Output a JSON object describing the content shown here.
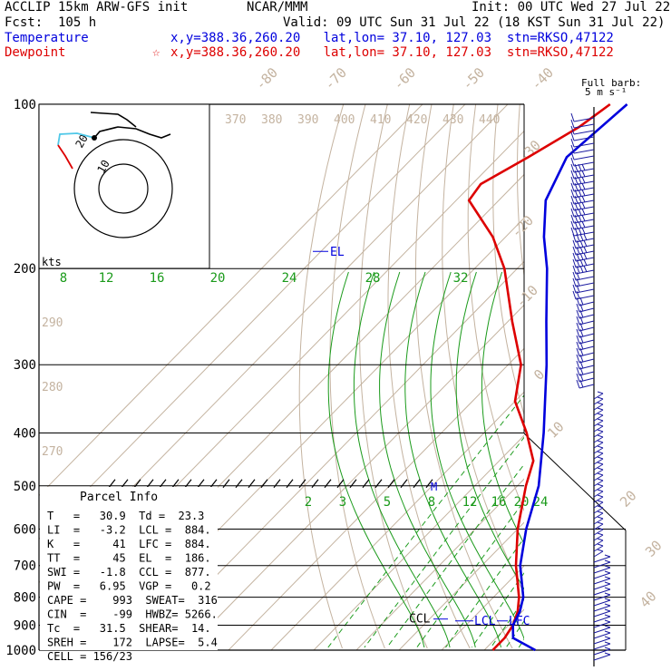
{
  "header": {
    "model": "ACCLIP 15km ARW-GFS init",
    "org": "NCAR/MMM",
    "init": "Init: 00 UTC Wed 27 Jul 22",
    "fcst": "Fcst:  105 h",
    "valid": "Valid: 09 UTC Sun 31 Jul 22 (18 KST Sun 31 Jul 22)",
    "temp_label": "Temperature",
    "temp_info": "x,y=388.36,260.20   lat,lon= 37.10, 127.03  stn=RKSO,47122",
    "dew_label": "Dewpoint",
    "dew_info": "x,y=388.36,260.20   lat,lon= 37.10, 127.03  stn=RKSO,47122",
    "star": "☆"
  },
  "colors": {
    "temperature": "#0000dd",
    "dewpoint": "#dd0000",
    "grid": "#000000",
    "isotherm": "#c4b3a0",
    "mixing_ratio": "#1a9a1a",
    "barb": "#1a1aa0",
    "hodo_cyan": "#4fc8e8"
  },
  "chart_data": {
    "type": "skew-t",
    "pressure_levels": [
      "100",
      "200",
      "300",
      "400",
      "500",
      "600",
      "700",
      "800",
      "900",
      "1000"
    ],
    "isotherm_labels": [
      "-80",
      "-70",
      "-60",
      "-50",
      "-40",
      "-30",
      "-20",
      "-10",
      "0",
      "10",
      "20",
      "30",
      "40"
    ],
    "theta_labels": [
      "370",
      "380",
      "390",
      "400",
      "410",
      "420",
      "430",
      "440"
    ],
    "theta_side_labels": [
      "290",
      "280",
      "270"
    ],
    "mixing_ratio_labels_top": [
      "8",
      "12",
      "16",
      "20",
      "24",
      "28",
      "32"
    ],
    "mixing_ratio_labels_low": [
      "2",
      "3",
      "5",
      "8",
      "12",
      "16",
      "20",
      "24"
    ],
    "temperature_profile": [
      [
        1000,
        32
      ],
      [
        950,
        24
      ],
      [
        900,
        21
      ],
      [
        850,
        19.5
      ],
      [
        800,
        17
      ],
      [
        700,
        9
      ],
      [
        600,
        2
      ],
      [
        500,
        -5
      ],
      [
        400,
        -16
      ],
      [
        300,
        -31
      ],
      [
        250,
        -41
      ],
      [
        200,
        -53
      ],
      [
        175,
        -61
      ],
      [
        150,
        -69
      ],
      [
        125,
        -74
      ],
      [
        100,
        -72
      ]
    ],
    "dewpoint_profile": [
      [
        1000,
        22
      ],
      [
        950,
        22
      ],
      [
        900,
        21
      ],
      [
        850,
        19
      ],
      [
        800,
        16
      ],
      [
        700,
        8
      ],
      [
        600,
        0
      ],
      [
        500,
        -8
      ],
      [
        450,
        -12
      ],
      [
        400,
        -20
      ],
      [
        350,
        -30
      ],
      [
        300,
        -37
      ],
      [
        250,
        -49
      ],
      [
        200,
        -63
      ],
      [
        175,
        -73
      ],
      [
        150,
        -87
      ],
      [
        140,
        -88
      ],
      [
        125,
        -83
      ],
      [
        110,
        -78
      ],
      [
        100,
        -76
      ]
    ],
    "annotations": {
      "el": "EL",
      "m": "M",
      "ccl": "CCL",
      "lcl": "LCL",
      "lfc": "LFC",
      "kts": "kts",
      "hodo_ring_inner": "10",
      "hodo_ring_outer": "20"
    },
    "hodograph": [
      [
        0,
        0
      ],
      [
        -4,
        -2
      ],
      [
        -10,
        -3
      ],
      [
        -16,
        -3
      ],
      [
        -20,
        -2
      ],
      [
        -23,
        -2
      ],
      [
        -25,
        0
      ],
      [
        -26,
        3
      ],
      [
        -27,
        7
      ],
      [
        -26,
        11
      ],
      [
        -24,
        15
      ]
    ],
    "barb_legend": [
      "Full barb:",
      "5 m s⁻¹"
    ]
  },
  "parcel_info": {
    "title": "Parcel Info",
    "lines": [
      "T   =   30.9  Td =  23.3",
      "LI  =   -3.2  LCL =  884.",
      "K   =     41  LFC =  884.",
      "TT  =     45  EL  =  186.",
      "SWI =   -1.8  CCL =  877.",
      "PW  =   6.95  VGP =   0.2",
      "CAPE =    993  SWEAT=  316",
      "CIN  =    -99  HWBZ= 5266.",
      "Tc  =   31.5  SHEAR=  14.",
      "SREH =    172  LAPSE=  5.4",
      "CELL = 156/23"
    ]
  }
}
